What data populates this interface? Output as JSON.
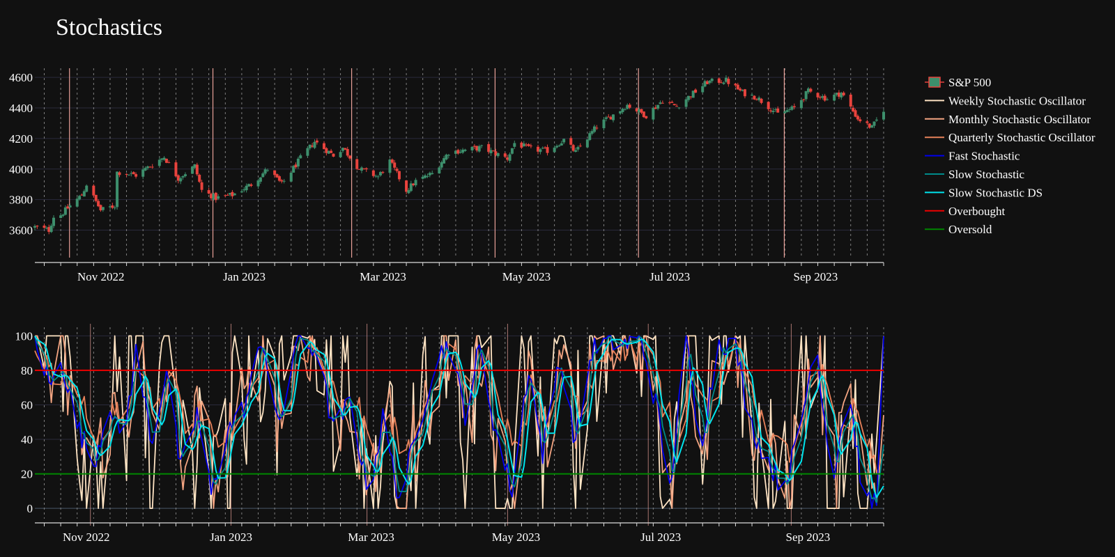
{
  "chart_data": {
    "type": "candlestick+line",
    "title": "Stochastics",
    "background": "#111111",
    "price_panel": {
      "series_name": "S&P 500",
      "ylim": [
        3420,
        4660
      ],
      "yticks": [
        3600,
        3800,
        4000,
        4200,
        4400,
        4600
      ],
      "up_color": "#3d8f6c",
      "down_color": "#e8433d",
      "xticks": [
        "Nov 2022",
        "Jan 2023",
        "Mar 2023",
        "May 2023",
        "Jul 2023",
        "Sep 2023"
      ],
      "month_starts": [
        "2022-11-01",
        "2023-01-01",
        "2023-03-01",
        "2023-05-01",
        "2023-07-01",
        "2023-09-01"
      ],
      "xlim": [
        "2022-10-06",
        "2023-10-02"
      ],
      "close_anchors": [
        [
          "2022-10-06",
          3620
        ],
        [
          "2022-10-12",
          3600
        ],
        [
          "2022-10-14",
          3690
        ],
        [
          "2022-10-17",
          3700
        ],
        [
          "2022-10-21",
          3760
        ],
        [
          "2022-10-26",
          3830
        ],
        [
          "2022-10-28",
          3900
        ],
        [
          "2022-11-03",
          3730
        ],
        [
          "2022-11-09",
          3760
        ],
        [
          "2022-11-10",
          3980
        ],
        [
          "2022-11-18",
          3960
        ],
        [
          "2022-11-30",
          4080
        ],
        [
          "2022-12-06",
          3940
        ],
        [
          "2022-12-13",
          4020
        ],
        [
          "2022-12-16",
          3860
        ],
        [
          "2022-12-22",
          3810
        ],
        [
          "2022-12-29",
          3830
        ],
        [
          "2023-01-06",
          3900
        ],
        [
          "2023-01-13",
          4000
        ],
        [
          "2023-01-19",
          3900
        ],
        [
          "2023-01-27",
          4070
        ],
        [
          "2023-02-02",
          4180
        ],
        [
          "2023-02-10",
          4090
        ],
        [
          "2023-02-14",
          4140
        ],
        [
          "2023-02-21",
          4000
        ],
        [
          "2023-03-01",
          3950
        ],
        [
          "2023-03-06",
          4050
        ],
        [
          "2023-03-13",
          3860
        ],
        [
          "2023-03-17",
          3920
        ],
        [
          "2023-03-24",
          3970
        ],
        [
          "2023-03-31",
          4110
        ],
        [
          "2023-04-14",
          4140
        ],
        [
          "2023-04-25",
          4070
        ],
        [
          "2023-04-28",
          4170
        ],
        [
          "2023-05-05",
          4130
        ],
        [
          "2023-05-12",
          4120
        ],
        [
          "2023-05-19",
          4190
        ],
        [
          "2023-05-24",
          4110
        ],
        [
          "2023-06-02",
          4280
        ],
        [
          "2023-06-15",
          4420
        ],
        [
          "2023-06-23",
          4350
        ],
        [
          "2023-06-30",
          4450
        ],
        [
          "2023-07-06",
          4410
        ],
        [
          "2023-07-19",
          4570
        ],
        [
          "2023-07-27",
          4580
        ],
        [
          "2023-08-03",
          4500
        ],
        [
          "2023-08-09",
          4470
        ],
        [
          "2023-08-18",
          4360
        ],
        [
          "2023-08-25",
          4400
        ],
        [
          "2023-08-31",
          4510
        ],
        [
          "2023-09-08",
          4460
        ],
        [
          "2023-09-14",
          4500
        ],
        [
          "2023-09-21",
          4330
        ],
        [
          "2023-09-27",
          4270
        ],
        [
          "2023-10-02",
          4390
        ]
      ]
    },
    "oscillator_panel": {
      "ylim": [
        -6,
        105
      ],
      "yticks": [
        0,
        20,
        40,
        60,
        80,
        100
      ],
      "overbought": 80,
      "oversold": 20,
      "xticks": [
        "Nov 2022",
        "Jan 2023",
        "Mar 2023",
        "May 2023",
        "Jul 2023",
        "Sep 2023"
      ],
      "fast_anchors": [
        [
          "2022-10-06",
          97
        ],
        [
          "2022-10-13",
          70
        ],
        [
          "2022-10-17",
          88
        ],
        [
          "2022-10-24",
          48
        ],
        [
          "2022-10-31",
          26
        ],
        [
          "2022-11-07",
          62
        ],
        [
          "2022-11-12",
          35
        ],
        [
          "2022-11-18",
          90
        ],
        [
          "2022-11-25",
          38
        ],
        [
          "2022-12-01",
          82
        ],
        [
          "2022-12-07",
          22
        ],
        [
          "2022-12-14",
          55
        ],
        [
          "2022-12-20",
          8
        ],
        [
          "2022-12-27",
          45
        ],
        [
          "2023-01-03",
          58
        ],
        [
          "2023-01-11",
          98
        ],
        [
          "2023-01-18",
          45
        ],
        [
          "2023-01-25",
          97
        ],
        [
          "2023-02-03",
          92
        ],
        [
          "2023-02-10",
          45
        ],
        [
          "2023-02-17",
          62
        ],
        [
          "2023-02-25",
          8
        ],
        [
          "2023-03-03",
          52
        ],
        [
          "2023-03-10",
          6
        ],
        [
          "2023-03-17",
          40
        ],
        [
          "2023-03-25",
          85
        ],
        [
          "2023-03-31",
          96
        ],
        [
          "2023-04-07",
          55
        ],
        [
          "2023-04-13",
          92
        ],
        [
          "2023-04-20",
          45
        ],
        [
          "2023-04-27",
          10
        ],
        [
          "2023-05-04",
          82
        ],
        [
          "2023-05-10",
          32
        ],
        [
          "2023-05-17",
          88
        ],
        [
          "2023-05-24",
          38
        ],
        [
          "2023-05-31",
          92
        ],
        [
          "2023-06-07",
          97
        ],
        [
          "2023-06-14",
          95
        ],
        [
          "2023-06-21",
          98
        ],
        [
          "2023-06-28",
          55
        ],
        [
          "2023-07-03",
          10
        ],
        [
          "2023-07-10",
          98
        ],
        [
          "2023-07-16",
          35
        ],
        [
          "2023-07-24",
          97
        ],
        [
          "2023-07-31",
          94
        ],
        [
          "2023-08-06",
          50
        ],
        [
          "2023-08-13",
          30
        ],
        [
          "2023-08-20",
          12
        ],
        [
          "2023-08-27",
          40
        ],
        [
          "2023-09-03",
          100
        ],
        [
          "2023-09-10",
          15
        ],
        [
          "2023-09-17",
          70
        ],
        [
          "2023-09-24",
          2
        ],
        [
          "2023-09-30",
          5
        ],
        [
          "2023-10-02",
          96
        ]
      ]
    },
    "legend": [
      {
        "label": "S&P 500",
        "color": "#3d8f6c",
        "kind": "candle"
      },
      {
        "label": "Weekly Stochastic Oscillator",
        "color": "#ffe4c4",
        "kind": "line"
      },
      {
        "label": "Monthly Stochastic Oscillator",
        "color": "#f4a582",
        "kind": "line"
      },
      {
        "label": "Quarterly Stochastic Oscillator",
        "color": "#e8825a",
        "kind": "line"
      },
      {
        "label": "Fast Stochastic",
        "color": "#0000ee",
        "kind": "line"
      },
      {
        "label": "Slow Stochastic",
        "color": "#008b8b",
        "kind": "line"
      },
      {
        "label": "Slow Stochastic DS",
        "color": "#00e5ee",
        "kind": "line"
      },
      {
        "label": "Overbought",
        "color": "#ee0000",
        "kind": "line"
      },
      {
        "label": "Oversold",
        "color": "#008800",
        "kind": "line"
      }
    ]
  }
}
